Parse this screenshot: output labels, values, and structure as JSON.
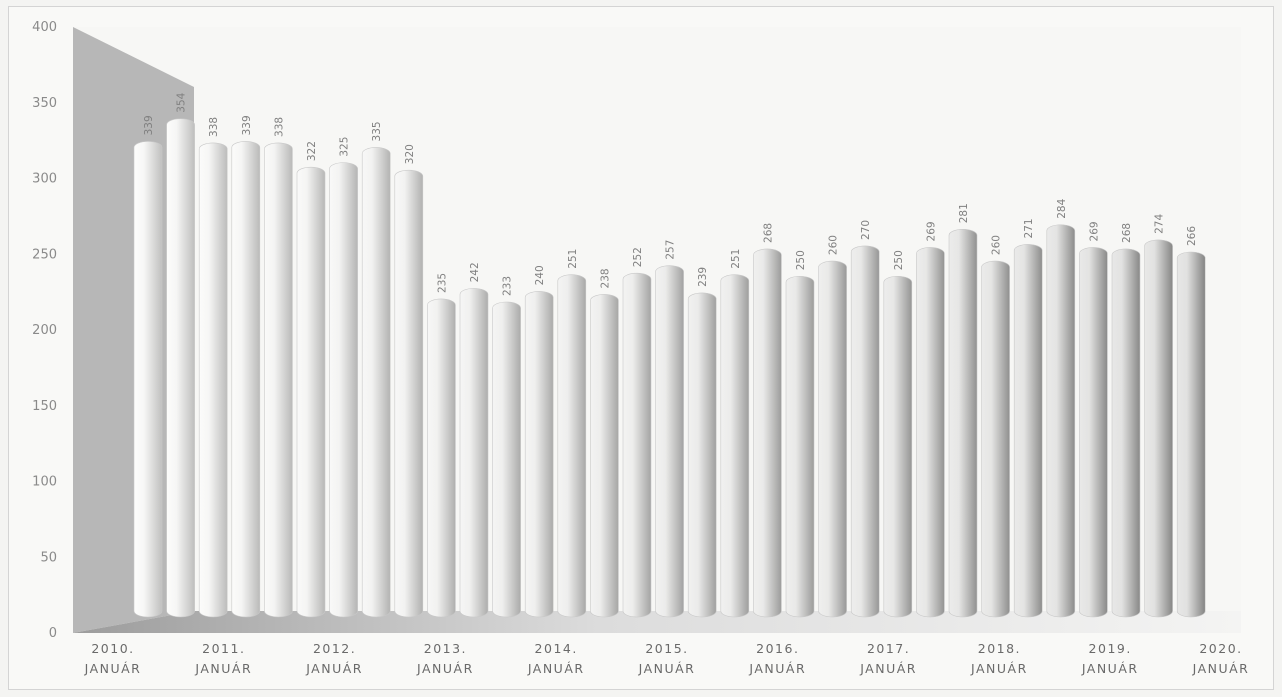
{
  "chart_data": {
    "type": "bar",
    "title": "",
    "xlabel": "",
    "ylabel": "",
    "ylim": [
      0,
      400
    ],
    "yticks": [
      0,
      50,
      100,
      150,
      200,
      250,
      300,
      350,
      400
    ],
    "grid": false,
    "legend": "none",
    "years": [
      "2010.",
      "2011.",
      "2012.",
      "2013.",
      "2014.",
      "2015.",
      "2016.",
      "2017.",
      "2018.",
      "2019.",
      "2020."
    ],
    "month_label": "JANUÁR",
    "values": [
      339,
      354,
      338,
      339,
      338,
      322,
      325,
      335,
      320,
      235,
      242,
      233,
      240,
      251,
      238,
      252,
      257,
      239,
      251,
      268,
      250,
      260,
      270,
      250,
      269,
      281,
      260,
      271,
      284,
      269,
      268,
      274,
      266
    ]
  },
  "colors": {
    "bar_light": "#fbfbfa",
    "bar_shade": "#bdbdbd",
    "floor": "#9e9e9e"
  }
}
